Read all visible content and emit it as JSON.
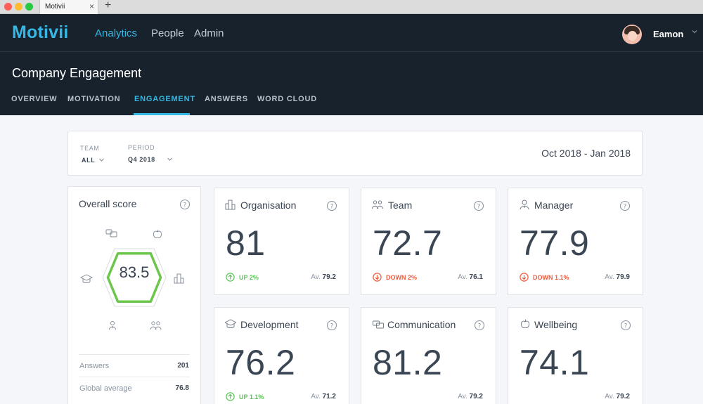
{
  "browser": {
    "tab_title": "Motivii",
    "close": "×",
    "new_tab": "+"
  },
  "header": {
    "logo": "Motivii",
    "nav": [
      "Analytics",
      "People",
      "Admin"
    ],
    "active_nav": "Analytics",
    "user_name": "Eamon"
  },
  "page": {
    "title": "Company Engagement",
    "tabs": [
      "OVERVIEW",
      "MOTIVATION",
      "ENGAGEMENT",
      "ANSWERS",
      "WORD CLOUD"
    ],
    "active_tab": "ENGAGEMENT"
  },
  "filters": {
    "team_label": "TEAM",
    "team_value": "ALL",
    "period_label": "PERIOD",
    "period_value": "Q4 2018",
    "date_range": "Oct 2018 - Jan 2018"
  },
  "overall": {
    "title": "Overall score",
    "score": "83.5",
    "score_fraction": 0.835,
    "stats": [
      {
        "label": "Answers",
        "value": "201"
      },
      {
        "label": "Global average",
        "value": "76.8"
      }
    ]
  },
  "categories": [
    {
      "name": "Organisation",
      "icon": "building-icon",
      "score": "81",
      "trend": "UP 2%",
      "direction": "up",
      "avg_label": "Av.",
      "avg": "79.2"
    },
    {
      "name": "Team",
      "icon": "team-icon",
      "score": "72.7",
      "trend": "DOWN 2%",
      "direction": "down",
      "avg_label": "Av.",
      "avg": "76.1"
    },
    {
      "name": "Manager",
      "icon": "manager-icon",
      "score": "77.9",
      "trend": "DOWN 1.1%",
      "direction": "down",
      "avg_label": "Av.",
      "avg": "79.9"
    },
    {
      "name": "Development",
      "icon": "graduation-cap-icon",
      "score": "76.2",
      "trend": "UP 1.1%",
      "direction": "up",
      "avg_label": "Av.",
      "avg": "71.2"
    },
    {
      "name": "Communication",
      "icon": "speech-bubbles-icon",
      "score": "81.2",
      "trend": "",
      "direction": "",
      "avg_label": "Av.",
      "avg": "79.2"
    },
    {
      "name": "Wellbeing",
      "icon": "apple-icon",
      "score": "74.1",
      "trend": "",
      "direction": "",
      "avg_label": "Av.",
      "avg": "79.2"
    }
  ],
  "colors": {
    "accent": "#35b8e5",
    "header_bg": "#18222d",
    "up": "#5cc45a",
    "down": "#ef5a3c",
    "hex_outline": "#6cc64c"
  }
}
